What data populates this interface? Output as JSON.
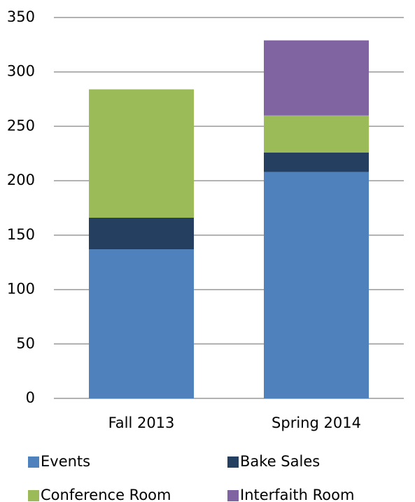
{
  "chart_data": {
    "type": "stacked_bar",
    "categories": [
      "Fall 2013",
      "Spring 2014"
    ],
    "series": [
      {
        "name": "Events",
        "color": "#4f81bd",
        "values": [
          137,
          208
        ]
      },
      {
        "name": "Bake Sales",
        "color": "#243f60",
        "values": [
          29,
          18
        ]
      },
      {
        "name": "Conference Room",
        "color": "#9bbb59",
        "values": [
          118,
          34
        ]
      },
      {
        "name": "Interfaith Room",
        "color": "#8064a2",
        "values": [
          0,
          69
        ]
      }
    ],
    "ylim": [
      0,
      350
    ],
    "yticks": [
      0,
      50,
      100,
      150,
      200,
      250,
      300,
      350
    ],
    "grid": true,
    "legend": "bottom"
  }
}
